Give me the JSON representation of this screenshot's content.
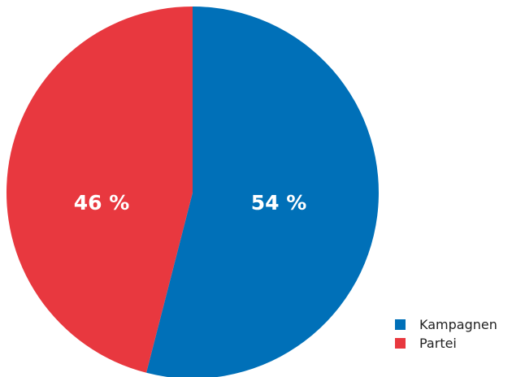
{
  "chart_data": {
    "type": "pie",
    "title": "",
    "categories": [
      "Kampagnen",
      "Partei"
    ],
    "values": [
      54,
      46
    ],
    "value_labels": [
      "54 %",
      "46 %"
    ],
    "colors": [
      "#0070b8",
      "#e8383f"
    ],
    "start": "12 o'clock, clockwise",
    "legend_position": "bottom-right"
  }
}
